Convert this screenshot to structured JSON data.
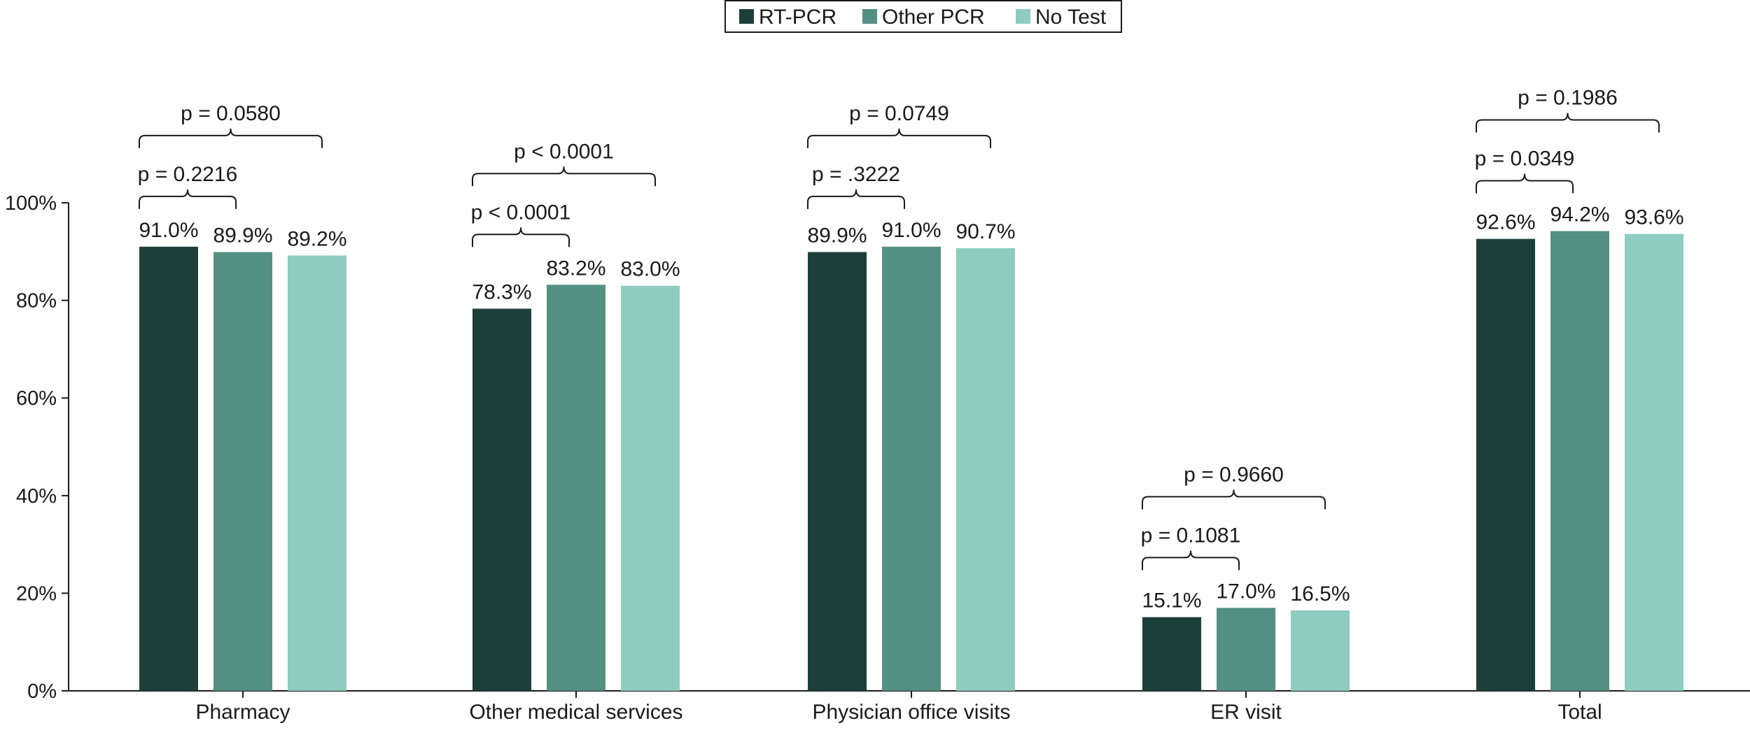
{
  "chart_data": {
    "type": "bar",
    "categories": [
      "Pharmacy",
      "Other medical services",
      "Physician office visits",
      "ER visit",
      "Total"
    ],
    "series": [
      {
        "name": "RT-PCR",
        "color": "#1c3f3a",
        "values": [
          91.0,
          78.3,
          89.9,
          15.1,
          92.6
        ]
      },
      {
        "name": "Other PCR",
        "color": "#548f83",
        "values": [
          89.9,
          83.2,
          91.0,
          17.0,
          94.2
        ]
      },
      {
        "name": "No Test",
        "color": "#8ecbc0",
        "values": [
          89.2,
          83.0,
          90.7,
          16.5,
          93.6
        ]
      }
    ],
    "value_labels": [
      [
        "91.0%",
        "89.9%",
        "89.2%"
      ],
      [
        "78.3%",
        "83.2%",
        "83.0%"
      ],
      [
        "89.9%",
        "91.0%",
        "90.7%"
      ],
      [
        "15.1%",
        "17.0%",
        "16.5%"
      ],
      [
        "92.6%",
        "94.2%",
        "93.6%"
      ]
    ],
    "p_values": [
      {
        "inner": "p = 0.2216",
        "outer": "p = 0.0580"
      },
      {
        "inner": "p < 0.0001",
        "outer": "p < 0.0001"
      },
      {
        "inner": "p = .3222",
        "outer": "p = 0.0749"
      },
      {
        "inner": "p = 0.1081",
        "outer": "p = 0.9660"
      },
      {
        "inner": "p = 0.0349",
        "outer": "p = 0.1986"
      }
    ],
    "y_ticks": [
      "0%",
      "20%",
      "40%",
      "60%",
      "80%",
      "100%"
    ],
    "ylim": [
      0,
      100
    ],
    "legend_position": "top-center",
    "grid": false
  }
}
